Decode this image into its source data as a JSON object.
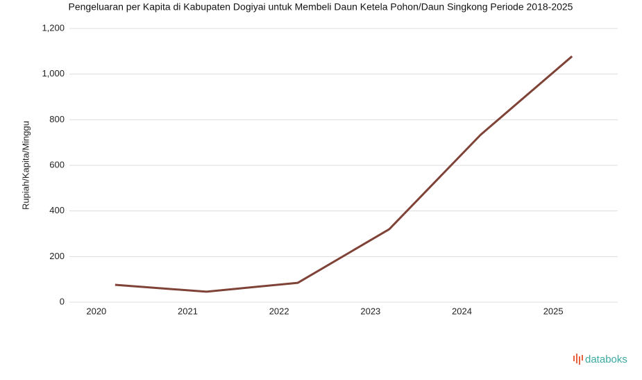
{
  "chart_data": {
    "type": "line",
    "title": "Pengeluaran per Kapita di Kabupaten Dogiyai untuk Membeli Daun Ketela Pohon/Daun Singkong Periode 2018-2025",
    "y_label": "Rupiah/Kapita/Minggu",
    "categories": [
      "2020",
      "2021",
      "2022",
      "2023",
      "2024",
      "2025"
    ],
    "series": [
      {
        "name": "Pengeluaran per Kapita",
        "color": "#7f4236",
        "values": [
          76,
          46,
          85,
          320,
          734,
          1078
        ]
      }
    ],
    "ylim": [
      0,
      1200
    ],
    "yticks": [
      0,
      200,
      400,
      600,
      800,
      {
        "value": 1000,
        "label": "1,000"
      },
      {
        "value": 1200,
        "label": "1,200"
      }
    ],
    "grid": true,
    "watermark": "databoks"
  }
}
